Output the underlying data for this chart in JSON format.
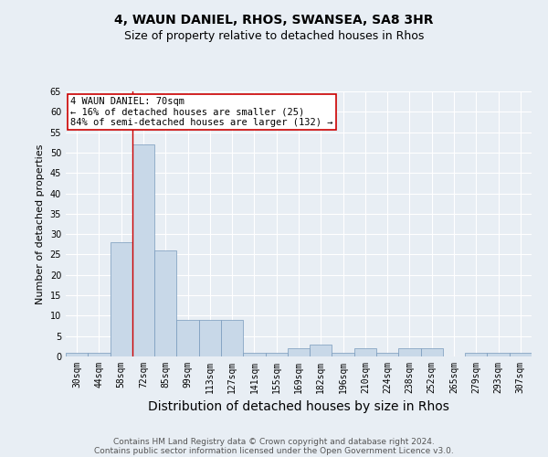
{
  "title": "4, WAUN DANIEL, RHOS, SWANSEA, SA8 3HR",
  "subtitle": "Size of property relative to detached houses in Rhos",
  "xlabel": "Distribution of detached houses by size in Rhos",
  "ylabel": "Number of detached properties",
  "footer1": "Contains HM Land Registry data © Crown copyright and database right 2024.",
  "footer2": "Contains public sector information licensed under the Open Government Licence v3.0.",
  "categories": [
    "30sqm",
    "44sqm",
    "58sqm",
    "72sqm",
    "85sqm",
    "99sqm",
    "113sqm",
    "127sqm",
    "141sqm",
    "155sqm",
    "169sqm",
    "182sqm",
    "196sqm",
    "210sqm",
    "224sqm",
    "238sqm",
    "252sqm",
    "265sqm",
    "279sqm",
    "293sqm",
    "307sqm"
  ],
  "values": [
    1,
    1,
    28,
    52,
    26,
    9,
    9,
    9,
    1,
    1,
    2,
    3,
    1,
    2,
    1,
    2,
    2,
    0,
    1,
    1,
    1
  ],
  "bar_color": "#c8d8e8",
  "bar_edge_color": "#7799bb",
  "property_line_color": "#cc0000",
  "annotation_text": "4 WAUN DANIEL: 70sqm\n← 16% of detached houses are smaller (25)\n84% of semi-detached houses are larger (132) →",
  "annotation_box_facecolor": "#ffffff",
  "annotation_box_edgecolor": "#cc0000",
  "ylim": [
    0,
    65
  ],
  "yticks": [
    0,
    5,
    10,
    15,
    20,
    25,
    30,
    35,
    40,
    45,
    50,
    55,
    60,
    65
  ],
  "background_color": "#e8eef4",
  "grid_color": "#ffffff",
  "title_fontsize": 10,
  "subtitle_fontsize": 9,
  "xlabel_fontsize": 10,
  "ylabel_fontsize": 8,
  "tick_fontsize": 7,
  "footer_fontsize": 6.5,
  "annotation_fontsize": 7.5
}
